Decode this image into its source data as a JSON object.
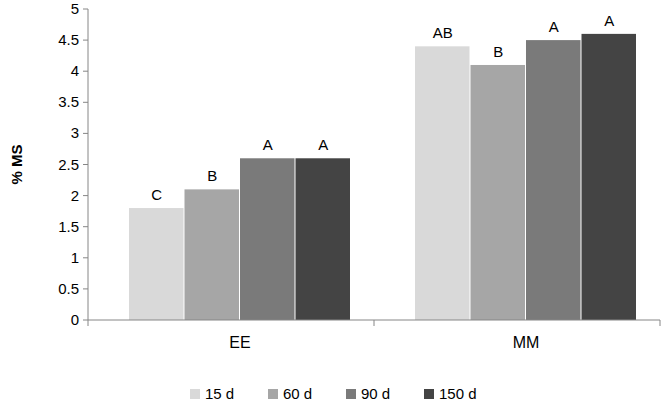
{
  "chart_data": {
    "type": "bar",
    "y_label": "% MS",
    "categories": [
      "EE",
      "MM"
    ],
    "series": [
      {
        "name": "15 d",
        "color": "#d9d9d9",
        "values": [
          1.8,
          4.4
        ],
        "annotations": [
          "C",
          "AB"
        ]
      },
      {
        "name": "60 d",
        "color": "#a6a6a6",
        "values": [
          2.1,
          4.1
        ],
        "annotations": [
          "B",
          "B"
        ]
      },
      {
        "name": "90 d",
        "color": "#7a7a7a",
        "values": [
          2.6,
          4.5
        ],
        "annotations": [
          "A",
          "A"
        ]
      },
      {
        "name": "150 d",
        "color": "#444444",
        "values": [
          2.6,
          4.6
        ],
        "annotations": [
          "A",
          "A"
        ]
      }
    ],
    "ylim": [
      0,
      5
    ],
    "yticks": [
      0,
      0.5,
      1,
      1.5,
      2,
      2.5,
      3,
      3.5,
      4,
      4.5,
      5
    ],
    "grid": false,
    "legend": "bottom"
  }
}
